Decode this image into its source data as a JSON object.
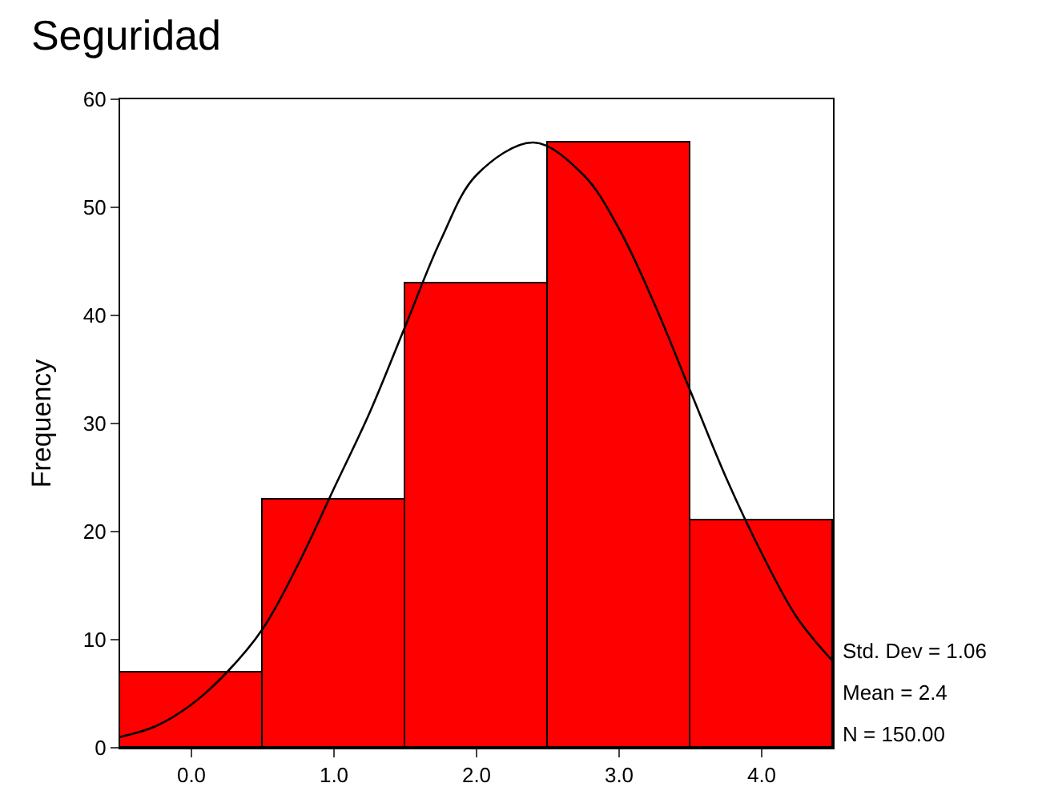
{
  "chart_data": {
    "type": "histogram",
    "title": "Seguridad",
    "ylabel": "Frequency",
    "bins": [
      -0.5,
      0.5,
      1.5,
      2.5,
      3.5,
      4.5
    ],
    "series": [
      {
        "color": "#ff0000",
        "values": [
          7,
          23,
          43,
          56,
          21
        ]
      },
      {
        "type": "line",
        "color": "#000000",
        "x": [
          -0.5,
          -0.25,
          0,
          0.25,
          0.5,
          0.75,
          1,
          1.25,
          1.5,
          1.75,
          2,
          2.4,
          2.75,
          3,
          3.25,
          3.5,
          3.75,
          4,
          4.25,
          4.5
        ],
        "values": [
          1,
          2,
          4,
          7,
          11,
          17,
          24,
          31,
          39,
          47,
          53,
          56,
          53,
          48,
          41,
          33,
          25,
          18,
          12,
          8
        ]
      }
    ],
    "xlim": [
      -0.5,
      4.5
    ],
    "xticks": [
      {
        "value": 0,
        "label": "0.0"
      },
      {
        "value": 1,
        "label": "1.0"
      },
      {
        "value": 2,
        "label": "2.0"
      },
      {
        "value": 3,
        "label": "3.0"
      },
      {
        "value": 4,
        "label": "4.0"
      }
    ],
    "ylim": [
      0,
      60
    ],
    "yticks": [
      0,
      10,
      20,
      30,
      40,
      50,
      60
    ],
    "annotations": [
      "Std. Dev = 1.06",
      "Mean = 2.4",
      "N = 150.00"
    ],
    "marker": "none",
    "line_style": "solid"
  }
}
